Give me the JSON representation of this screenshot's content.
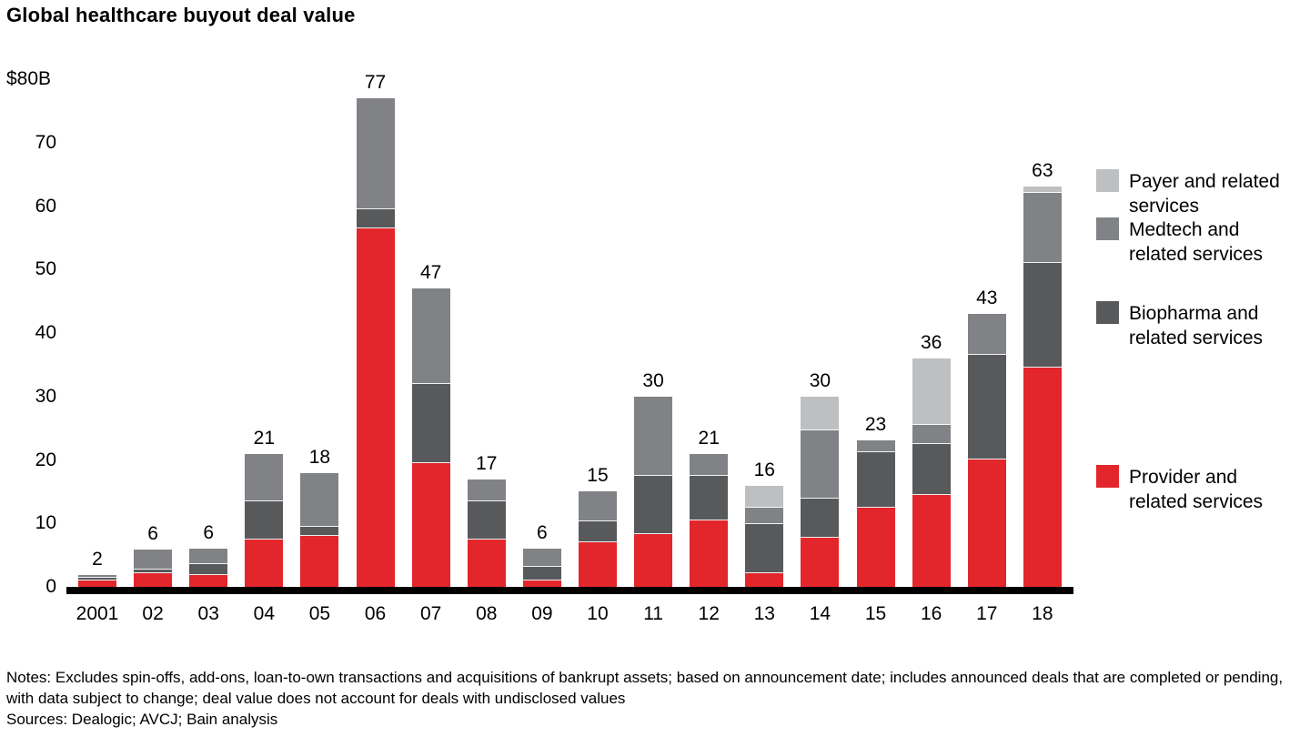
{
  "title": "Global healthcare buyout deal value",
  "y_axis": {
    "top_label": "$80B",
    "ticks": [
      70,
      60,
      50,
      40,
      30,
      20,
      10,
      0
    ],
    "max": 80
  },
  "chart_data": {
    "type": "bar",
    "stacked": true,
    "stack_order": "bottom_to_top",
    "title": "Global healthcare buyout deal value",
    "categories": [
      "2001",
      "02",
      "03",
      "04",
      "05",
      "06",
      "07",
      "08",
      "09",
      "10",
      "11",
      "12",
      "13",
      "14",
      "15",
      "16",
      "17",
      "18"
    ],
    "totals": [
      2,
      6,
      6,
      21,
      18,
      77,
      47,
      17,
      6,
      15,
      30,
      21,
      16,
      30,
      23,
      36,
      43,
      63
    ],
    "series": [
      {
        "name": "Provider and related services",
        "color": "#e2262b",
        "values": [
          1.0,
          2.2,
          1.8,
          7.5,
          8.0,
          56.5,
          19.5,
          7.5,
          1.0,
          7.0,
          8.3,
          10.5,
          2.2,
          7.8,
          12.5,
          14.5,
          20.0,
          34.5
        ]
      },
      {
        "name": "Biopharma and related services",
        "color": "#58595b",
        "values": [
          0.5,
          0.6,
          1.7,
          6.0,
          1.5,
          3.0,
          12.5,
          6.0,
          2.2,
          3.3,
          9.2,
          7.0,
          7.7,
          6.1,
          8.7,
          8.0,
          16.5,
          16.5
        ]
      },
      {
        "name": "Medtech and related services",
        "color": "#808285",
        "values": [
          0.5,
          3.2,
          2.5,
          7.5,
          8.5,
          17.5,
          15.0,
          3.5,
          2.8,
          4.7,
          12.5,
          3.5,
          2.6,
          10.8,
          1.8,
          3.0,
          6.5,
          11.0
        ]
      },
      {
        "name": "Payer and related services",
        "color": "#bdbfc1",
        "values": [
          0,
          0,
          0,
          0,
          0,
          0,
          0,
          0,
          0,
          0,
          0,
          0,
          3.5,
          5.3,
          0,
          10.5,
          0,
          1.0
        ]
      }
    ],
    "ylim": [
      0,
      80
    ],
    "grid": false,
    "legend_position": "right"
  },
  "legend": {
    "items": [
      {
        "key": "payer",
        "color": "#bdbfc1",
        "lines": [
          "Payer and related",
          "services"
        ]
      },
      {
        "key": "medtech",
        "color": "#808285",
        "lines": [
          "Medtech and",
          "related services"
        ]
      },
      {
        "key": "biopharma",
        "color": "#58595b",
        "lines": [
          "Biopharma and",
          "related services"
        ]
      },
      {
        "key": "provider",
        "color": "#e2262b",
        "lines": [
          "Provider and",
          "related services"
        ]
      }
    ]
  },
  "notes": "Notes: Excludes spin-offs, add-ons, loan-to-own transactions and acquisitions of bankrupt assets; based on announcement date; includes announced deals that are completed or pending, with data subject to change; deal value does not account for deals with undisclosed values",
  "sources": "Sources: Dealogic; AVCJ; Bain analysis"
}
